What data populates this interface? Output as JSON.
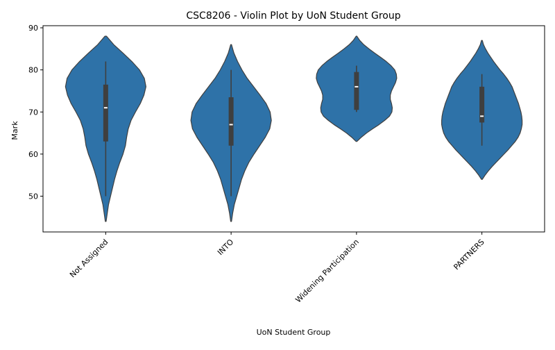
{
  "chart_data": {
    "type": "violin",
    "title": "CSC8206 - Violin Plot by UoN Student Group",
    "xlabel": "UoN Student Group",
    "ylabel": "Mark",
    "ylim": [
      41.5,
      90.5
    ],
    "yticks": [
      50,
      60,
      70,
      80,
      90
    ],
    "grid": false,
    "color": "#2e72a8",
    "categories": [
      "Not Assigned",
      "INTO",
      "Widening Participation",
      "PARTNERS"
    ],
    "groups": [
      {
        "name": "Not Assigned",
        "min": 50,
        "q1": 63,
        "median": 71,
        "q3": 76.5,
        "max": 82,
        "kde_min": 44,
        "kde_max": 88,
        "density": [
          [
            44,
            0.01
          ],
          [
            46,
            0.04
          ],
          [
            48,
            0.07
          ],
          [
            50,
            0.12
          ],
          [
            52,
            0.17
          ],
          [
            54,
            0.22
          ],
          [
            56,
            0.28
          ],
          [
            58,
            0.35
          ],
          [
            60,
            0.43
          ],
          [
            62,
            0.49
          ],
          [
            64,
            0.52
          ],
          [
            66,
            0.56
          ],
          [
            68,
            0.63
          ],
          [
            70,
            0.74
          ],
          [
            72,
            0.86
          ],
          [
            74,
            0.95
          ],
          [
            76,
            1.0
          ],
          [
            78,
            0.96
          ],
          [
            80,
            0.84
          ],
          [
            82,
            0.65
          ],
          [
            84,
            0.43
          ],
          [
            86,
            0.2
          ],
          [
            88,
            0.02
          ]
        ]
      },
      {
        "name": "INTO",
        "min": 50,
        "q1": 62,
        "median": 67,
        "q3": 73.5,
        "max": 80,
        "kde_min": 44,
        "kde_max": 86,
        "density": [
          [
            44,
            0.01
          ],
          [
            46,
            0.04
          ],
          [
            48,
            0.08
          ],
          [
            50,
            0.14
          ],
          [
            52,
            0.2
          ],
          [
            54,
            0.26
          ],
          [
            56,
            0.34
          ],
          [
            58,
            0.44
          ],
          [
            60,
            0.57
          ],
          [
            62,
            0.71
          ],
          [
            64,
            0.85
          ],
          [
            66,
            0.96
          ],
          [
            68,
            1.0
          ],
          [
            70,
            0.97
          ],
          [
            72,
            0.87
          ],
          [
            74,
            0.72
          ],
          [
            76,
            0.56
          ],
          [
            78,
            0.4
          ],
          [
            80,
            0.27
          ],
          [
            82,
            0.16
          ],
          [
            84,
            0.07
          ],
          [
            86,
            0.01
          ]
        ]
      },
      {
        "name": "Widening Participation",
        "min": 70,
        "q1": 70.5,
        "median": 76,
        "q3": 79.5,
        "max": 81,
        "kde_min": 63,
        "kde_max": 88,
        "density": [
          [
            63,
            0.01
          ],
          [
            64,
            0.12
          ],
          [
            65,
            0.25
          ],
          [
            66,
            0.4
          ],
          [
            67,
            0.56
          ],
          [
            68,
            0.7
          ],
          [
            69,
            0.82
          ],
          [
            70,
            0.88
          ],
          [
            71,
            0.89
          ],
          [
            72,
            0.87
          ],
          [
            73,
            0.84
          ],
          [
            74,
            0.84
          ],
          [
            75,
            0.87
          ],
          [
            76,
            0.92
          ],
          [
            77,
            0.97
          ],
          [
            78,
            1.0
          ],
          [
            79,
            0.99
          ],
          [
            80,
            0.95
          ],
          [
            81,
            0.86
          ],
          [
            82,
            0.74
          ],
          [
            83,
            0.6
          ],
          [
            84,
            0.45
          ],
          [
            85,
            0.31
          ],
          [
            86,
            0.18
          ],
          [
            87,
            0.08
          ],
          [
            88,
            0.01
          ]
        ]
      },
      {
        "name": "PARTNERS",
        "min": 62,
        "q1": 67.5,
        "median": 69,
        "q3": 76,
        "max": 79,
        "kde_min": 54,
        "kde_max": 87,
        "density": [
          [
            54,
            0.01
          ],
          [
            55,
            0.08
          ],
          [
            56,
            0.16
          ],
          [
            57,
            0.25
          ],
          [
            58,
            0.35
          ],
          [
            59,
            0.45
          ],
          [
            60,
            0.55
          ],
          [
            61,
            0.65
          ],
          [
            62,
            0.74
          ],
          [
            63,
            0.83
          ],
          [
            64,
            0.9
          ],
          [
            65,
            0.95
          ],
          [
            66,
            0.98
          ],
          [
            67,
            1.0
          ],
          [
            68,
            1.0
          ],
          [
            69,
            0.99
          ],
          [
            70,
            0.97
          ],
          [
            71,
            0.94
          ],
          [
            72,
            0.91
          ],
          [
            73,
            0.87
          ],
          [
            74,
            0.83
          ],
          [
            75,
            0.79
          ],
          [
            76,
            0.75
          ],
          [
            77,
            0.69
          ],
          [
            78,
            0.62
          ],
          [
            79,
            0.54
          ],
          [
            80,
            0.45
          ],
          [
            81,
            0.37
          ],
          [
            82,
            0.29
          ],
          [
            83,
            0.22
          ],
          [
            84,
            0.15
          ],
          [
            85,
            0.09
          ],
          [
            86,
            0.04
          ],
          [
            87,
            0.01
          ]
        ]
      }
    ]
  }
}
